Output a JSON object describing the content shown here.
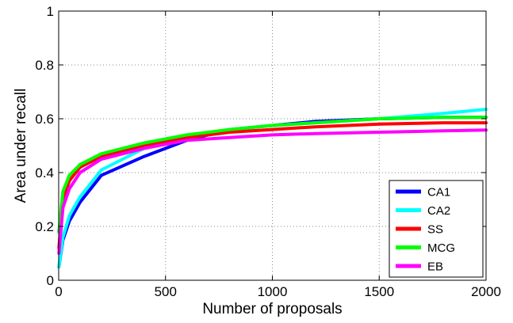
{
  "chart_data": {
    "type": "line",
    "xlabel": "Number of proposals",
    "ylabel": "Area under recall",
    "xlim": [
      0,
      2000
    ],
    "ylim": [
      0,
      1
    ],
    "xticks": [
      "0",
      "500",
      "1000",
      "1500",
      "2000"
    ],
    "yticks": [
      "0",
      "0.2",
      "0.4",
      "0.6",
      "0.8",
      "1"
    ],
    "grid": true,
    "legend_position": "bottom-right",
    "series": [
      {
        "name": "CA1",
        "color": "#0000ff",
        "x": [
          1,
          20,
          50,
          100,
          200,
          400,
          600,
          800,
          1000,
          1200,
          1500,
          1800,
          2000
        ],
        "y": [
          0.05,
          0.15,
          0.22,
          0.29,
          0.39,
          0.46,
          0.52,
          0.56,
          0.575,
          0.59,
          0.6,
          0.605,
          0.605
        ]
      },
      {
        "name": "CA2",
        "color": "#00ffff",
        "x": [
          1,
          20,
          50,
          100,
          200,
          400,
          600,
          800,
          1000,
          1200,
          1500,
          1800,
          2000
        ],
        "y": [
          0.05,
          0.16,
          0.24,
          0.31,
          0.41,
          0.49,
          0.53,
          0.56,
          0.575,
          0.585,
          0.6,
          0.62,
          0.635
        ]
      },
      {
        "name": "SS",
        "color": "#ff0000",
        "x": [
          1,
          20,
          50,
          100,
          200,
          400,
          600,
          800,
          1000,
          1200,
          1500,
          1800,
          2000
        ],
        "y": [
          0.12,
          0.3,
          0.37,
          0.42,
          0.46,
          0.5,
          0.53,
          0.55,
          0.56,
          0.57,
          0.58,
          0.585,
          0.585
        ]
      },
      {
        "name": "MCG",
        "color": "#00ff00",
        "x": [
          1,
          20,
          50,
          100,
          200,
          400,
          600,
          800,
          1000,
          1200,
          1500,
          1800,
          2000
        ],
        "y": [
          0.18,
          0.33,
          0.39,
          0.43,
          0.47,
          0.51,
          0.54,
          0.56,
          0.575,
          0.585,
          0.6,
          0.605,
          0.605
        ]
      },
      {
        "name": "EB",
        "color": "#ff00ff",
        "x": [
          1,
          20,
          50,
          100,
          200,
          400,
          600,
          800,
          1000,
          1200,
          1500,
          1800,
          2000
        ],
        "y": [
          0.1,
          0.27,
          0.34,
          0.4,
          0.45,
          0.49,
          0.52,
          0.53,
          0.54,
          0.545,
          0.55,
          0.555,
          0.558
        ]
      }
    ]
  }
}
